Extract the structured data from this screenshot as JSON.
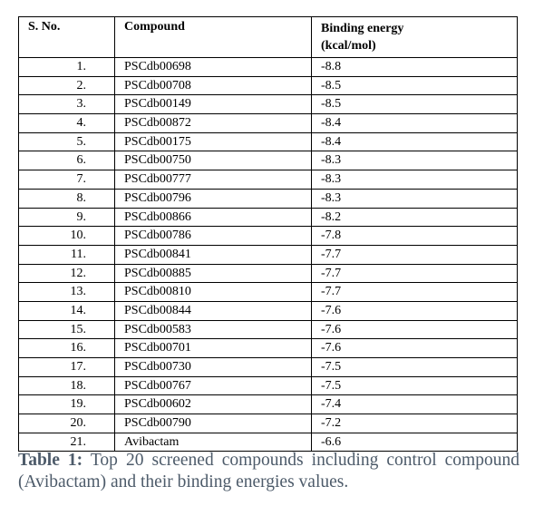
{
  "table": {
    "header": [
      "S. No.",
      "Compound",
      "Binding energy (kcal/mol)"
    ],
    "rows": [
      [
        "1.",
        "PSCdb00698",
        "-8.8"
      ],
      [
        "2.",
        "PSCdb00708",
        "-8.5"
      ],
      [
        "3.",
        "PSCdb00149",
        "-8.5"
      ],
      [
        "4.",
        "PSCdb00872",
        "-8.4"
      ],
      [
        "5.",
        "PSCdb00175",
        "-8.4"
      ],
      [
        "6.",
        "PSCdb00750",
        "-8.3"
      ],
      [
        "7.",
        "PSCdb00777",
        "-8.3"
      ],
      [
        "8.",
        "PSCdb00796",
        "-8.3"
      ],
      [
        "9.",
        "PSCdb00866",
        "-8.2"
      ],
      [
        "10.",
        "PSCdb00786",
        "-7.8"
      ],
      [
        "11.",
        "PSCdb00841",
        "-7.7"
      ],
      [
        "12.",
        "PSCdb00885",
        "-7.7"
      ],
      [
        "13.",
        "PSCdb00810",
        "-7.7"
      ],
      [
        "14.",
        "PSCdb00844",
        "-7.6"
      ],
      [
        "15.",
        "PSCdb00583",
        "-7.6"
      ],
      [
        "16.",
        "PSCdb00701",
        "-7.6"
      ],
      [
        "17.",
        "PSCdb00730",
        "-7.5"
      ],
      [
        "18.",
        "PSCdb00767",
        "-7.5"
      ],
      [
        "19.",
        "PSCdb00602",
        "-7.4"
      ],
      [
        "20.",
        "PSCdb00790",
        "-7.2"
      ],
      [
        "21.",
        "Avibactam",
        "-6.6"
      ]
    ]
  },
  "caption": {
    "label": "Table 1:",
    "text": "Top 20 screened compounds including control compound (Avibactam) and their binding energies values."
  }
}
